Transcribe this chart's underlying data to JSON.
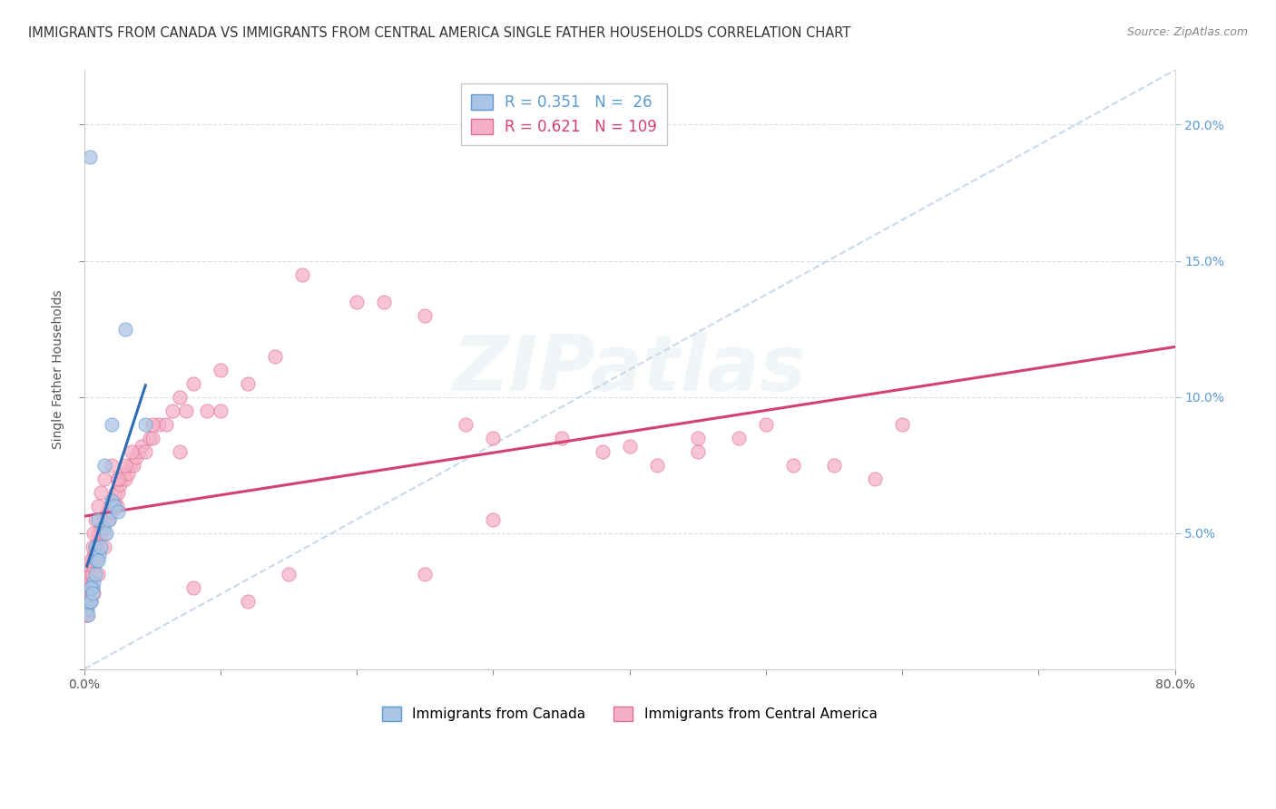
{
  "title": "IMMIGRANTS FROM CANADA VS IMMIGRANTS FROM CENTRAL AMERICA SINGLE FATHER HOUSEHOLDS CORRELATION CHART",
  "source": "Source: ZipAtlas.com",
  "ylabel": "Single Father Households",
  "canada_color": "#aac4e3",
  "canada_edge": "#5b9bd5",
  "central_color": "#f5b0c5",
  "central_edge": "#e07090",
  "legend_R_canada": "0.351",
  "legend_N_canada": "26",
  "legend_R_central": "0.621",
  "legend_N_central": "109",
  "trend_canada_color": "#2e6db4",
  "trend_central_color": "#d44070",
  "diagonal_color": "#b8cce4",
  "background_color": "#ffffff",
  "watermark": "ZIPatlas",
  "watermark_color": "#ccdde8",
  "canada_x": [
    0.2,
    0.3,
    0.4,
    0.5,
    0.6,
    0.7,
    0.8,
    0.9,
    1.0,
    1.1,
    1.2,
    1.4,
    1.6,
    1.8,
    2.0,
    2.2,
    2.5,
    0.5,
    0.6,
    0.8,
    1.0,
    1.5,
    2.0,
    3.0,
    4.5,
    0.4
  ],
  "canada_y": [
    2.2,
    2.0,
    2.5,
    2.5,
    3.0,
    3.2,
    4.5,
    4.0,
    5.5,
    4.2,
    4.5,
    5.2,
    5.0,
    5.5,
    6.2,
    6.0,
    5.8,
    3.0,
    2.8,
    3.5,
    4.0,
    7.5,
    9.0,
    12.5,
    9.0,
    18.8
  ],
  "central_x": [
    0.1,
    0.15,
    0.2,
    0.2,
    0.25,
    0.3,
    0.3,
    0.35,
    0.4,
    0.4,
    0.5,
    0.5,
    0.5,
    0.6,
    0.6,
    0.7,
    0.7,
    0.8,
    0.8,
    0.9,
    0.9,
    1.0,
    1.0,
    1.1,
    1.2,
    1.2,
    1.3,
    1.4,
    1.5,
    1.5,
    1.6,
    1.7,
    1.8,
    1.9,
    2.0,
    2.0,
    2.1,
    2.2,
    2.3,
    2.4,
    2.5,
    2.5,
    2.6,
    2.7,
    2.8,
    3.0,
    3.2,
    3.4,
    3.6,
    3.8,
    4.0,
    4.2,
    4.5,
    4.8,
    5.0,
    5.5,
    6.0,
    6.5,
    7.0,
    7.5,
    8.0,
    9.0,
    10.0,
    12.0,
    14.0,
    16.0,
    20.0,
    22.0,
    25.0,
    28.0,
    30.0,
    35.0,
    38.0,
    40.0,
    42.0,
    45.0,
    48.0,
    50.0,
    52.0,
    55.0,
    58.0,
    60.0,
    0.2,
    0.3,
    0.4,
    0.5,
    0.6,
    0.7,
    0.8,
    1.0,
    1.2,
    1.5,
    2.0,
    2.5,
    3.0,
    3.5,
    5.0,
    7.0,
    10.0,
    45.0,
    30.0,
    25.0,
    15.0,
    12.0,
    8.0,
    0.5,
    0.7,
    1.0,
    1.5
  ],
  "central_y": [
    2.0,
    2.2,
    2.5,
    2.8,
    2.5,
    2.8,
    3.0,
    3.2,
    3.0,
    3.5,
    3.2,
    3.5,
    3.8,
    3.5,
    4.0,
    3.8,
    4.2,
    4.0,
    4.5,
    4.2,
    4.5,
    4.5,
    5.0,
    4.8,
    5.0,
    5.2,
    5.2,
    5.5,
    5.0,
    5.5,
    5.5,
    5.8,
    5.5,
    6.0,
    5.8,
    6.2,
    6.0,
    6.2,
    6.5,
    6.0,
    6.5,
    7.0,
    6.8,
    7.0,
    7.2,
    7.0,
    7.2,
    7.5,
    7.5,
    7.8,
    8.0,
    8.2,
    8.0,
    8.5,
    8.5,
    9.0,
    9.0,
    9.5,
    10.0,
    9.5,
    10.5,
    9.5,
    11.0,
    10.5,
    11.5,
    14.5,
    13.5,
    13.5,
    13.0,
    9.0,
    8.5,
    8.5,
    8.0,
    8.2,
    7.5,
    8.0,
    8.5,
    9.0,
    7.5,
    7.5,
    7.0,
    9.0,
    2.0,
    2.5,
    3.0,
    4.0,
    4.5,
    5.0,
    5.5,
    6.0,
    6.5,
    7.0,
    7.5,
    7.0,
    7.5,
    8.0,
    9.0,
    8.0,
    9.5,
    8.5,
    5.5,
    3.5,
    3.5,
    2.5,
    3.0,
    2.5,
    2.8,
    3.5,
    4.5
  ],
  "xlim": [
    0,
    80
  ],
  "ylim": [
    0,
    22
  ],
  "yticks": [
    0,
    5,
    10,
    15,
    20
  ],
  "xticks": [
    0,
    10,
    20,
    30,
    40,
    50,
    60,
    70,
    80
  ]
}
